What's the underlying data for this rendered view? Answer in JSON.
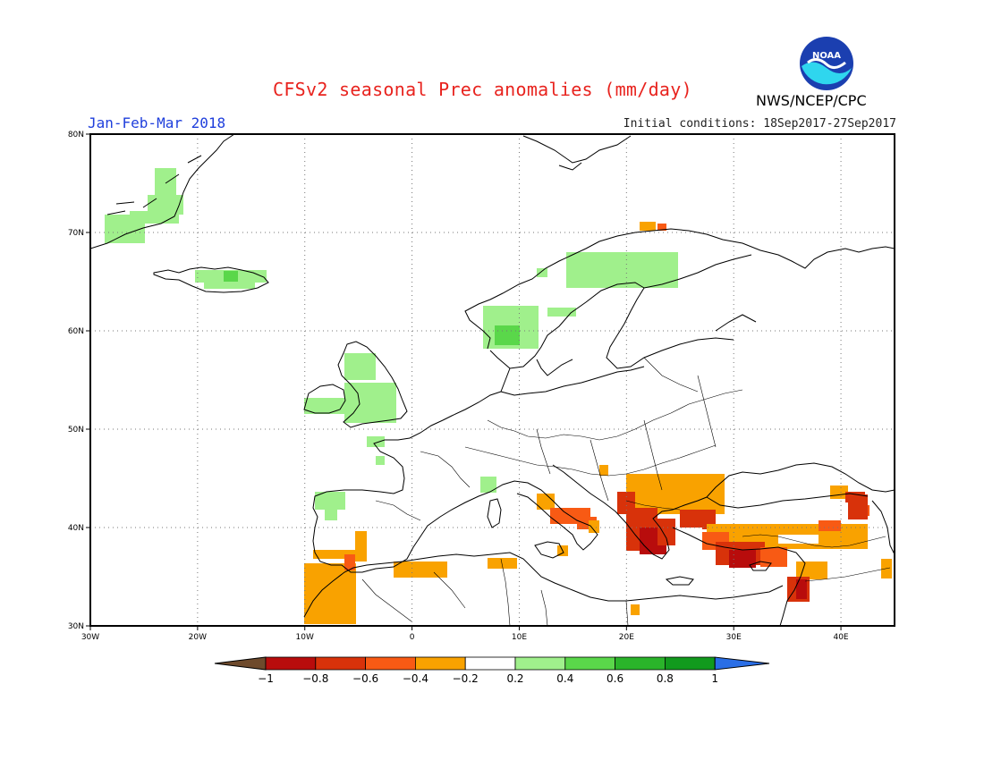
{
  "header": {
    "title": "CFSv2 seasonal Prec anomalies (mm/day)",
    "period": "Jan-Feb-Mar 2018",
    "initial_conditions": "Initial conditions: 18Sep2017-27Sep2017",
    "agency": "NWS/NCEP/CPC",
    "logo_text": "NOAA"
  },
  "map": {
    "lon_range": [
      -30,
      45
    ],
    "lat_range": [
      30,
      80
    ],
    "x_ticks": [
      "30W",
      "20W",
      "10W",
      "0",
      "10E",
      "20E",
      "30E",
      "40E"
    ],
    "y_ticks": [
      "30N",
      "40N",
      "50N",
      "60N",
      "70N",
      "80N"
    ],
    "grid": "dotted"
  },
  "colorbar": {
    "labels": [
      "-1",
      "-0.8",
      "-0.6",
      "-0.4",
      "-0.2",
      "0.2",
      "0.4",
      "0.6",
      "0.8",
      "1"
    ],
    "colors": [
      "#6e4a2c",
      "#b80c0c",
      "#d8320a",
      "#f85a14",
      "#f9a200",
      "#ffffff",
      "#a0f08c",
      "#5ad74a",
      "#2ab42a",
      "#119a1d",
      "#2a6ee6"
    ]
  },
  "colors": {
    "light_green": "#a0f08c",
    "green": "#5ad74a",
    "orange": "#f9a200",
    "red_orange": "#f85a14",
    "red": "#d8320a",
    "dark_red": "#b80c0c",
    "coast": "#000000"
  }
}
